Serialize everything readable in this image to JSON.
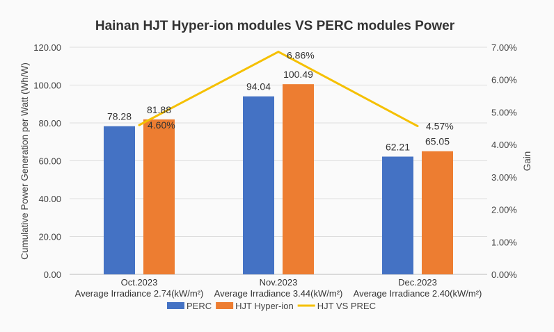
{
  "chart_data": {
    "type": "bar",
    "title": "Hainan HJT Hyper-ion modules VS PERC modules  Power",
    "ylabel": "Cumulative Power Generation per Watt  (Wh/W)",
    "y2label": "Gain",
    "ylim": [
      0,
      120
    ],
    "y2lim": [
      0,
      7
    ],
    "yticks": [
      "0.00",
      "20.00",
      "40.00",
      "60.00",
      "80.00",
      "100.00",
      "120.00"
    ],
    "y2ticks": [
      "0.00%",
      "1.00%",
      "2.00%",
      "3.00%",
      "4.00%",
      "5.00%",
      "6.00%",
      "7.00%"
    ],
    "grid": true,
    "legend_position": "bottom",
    "categories": [
      {
        "line1": "Oct.2023",
        "line2": "Average Irradiance 2.74(kW/m²)"
      },
      {
        "line1": "Nov.2023",
        "line2": "Average Irradiance 3.44(kW/m²)"
      },
      {
        "line1": "Dec.2023",
        "line2": "Average Irradiance 2.40(kW/m²)"
      }
    ],
    "series": [
      {
        "name": "PERC",
        "type": "bar",
        "color": "#4472c4",
        "values": [
          78.28,
          94.04,
          62.21
        ],
        "labels": [
          "78.28",
          "94.04",
          "62.21"
        ]
      },
      {
        "name": "HJT Hyper-ion",
        "type": "bar",
        "color": "#ed7d31",
        "values": [
          81.88,
          100.49,
          65.05
        ],
        "labels": [
          "81.88",
          "100.49",
          "65.05"
        ]
      },
      {
        "name": "HJT VS PREC",
        "type": "line",
        "axis": "right",
        "color": "#f5c000",
        "values": [
          4.6,
          6.86,
          4.57
        ],
        "labels": [
          "4.60%",
          "6.86%",
          "4.57%"
        ]
      }
    ]
  }
}
